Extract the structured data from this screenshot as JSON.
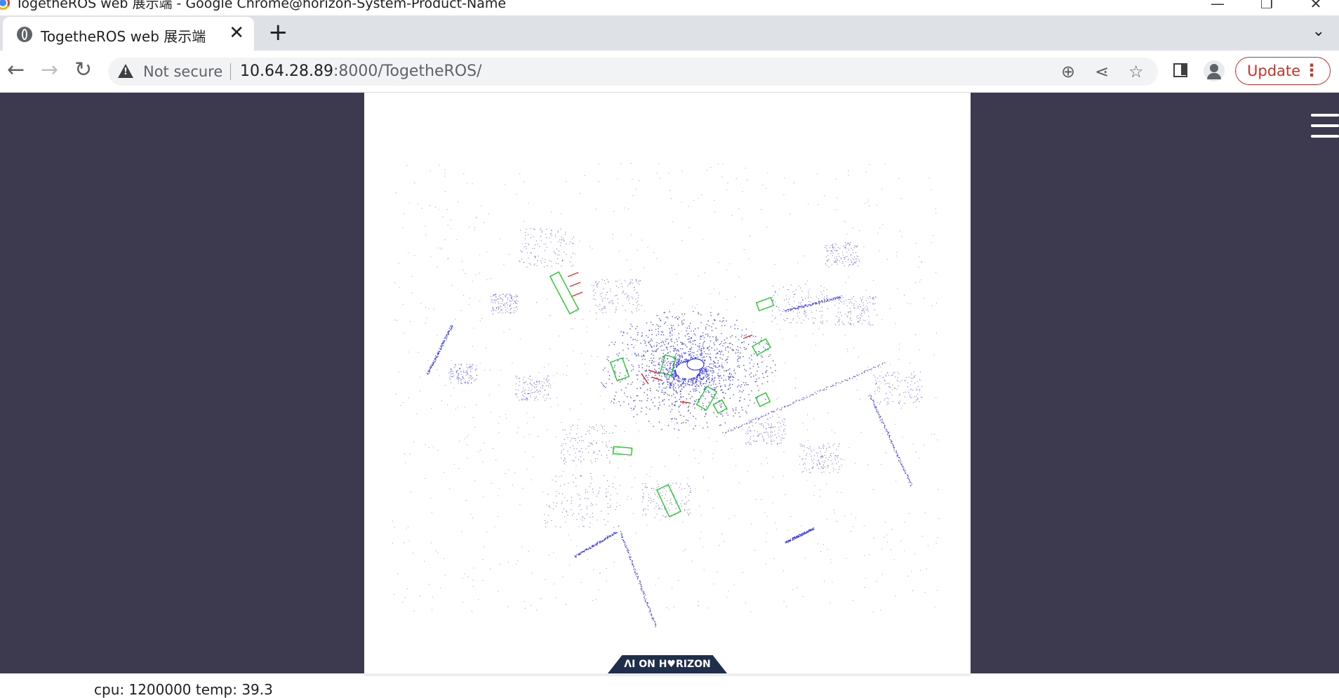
{
  "window": {
    "title": "TogetheROS web 展示端 - Google Chrome@horizon-System-Product-Name",
    "minimize_glyph": "—",
    "restore_glyph": "❐",
    "close_glyph": "✕"
  },
  "tab": {
    "title": "TogetheROS web 展示端",
    "close_glyph": "✕",
    "new_tab_glyph": "+",
    "dropdown_glyph": "⌄"
  },
  "toolbar": {
    "back_glyph": "←",
    "forward_glyph": "→",
    "reload_glyph": "↻",
    "security_label": "Not secure",
    "url_host": "10.64.28.89",
    "url_path": ":8000/TogetheROS/",
    "zoom_glyph": "⊕",
    "share_glyph": "⋖",
    "star_glyph": "☆",
    "update_label": "Update",
    "menu_glyph": "⋮"
  },
  "viewer": {
    "logo_text": "ΛI ON H♥RIZON",
    "point_color": "#1a1aff",
    "box_color_green": "#00cc00",
    "box_color_red": "#ff0000"
  },
  "status": {
    "text": "cpu: 1200000   temp: 39.3"
  },
  "colors": {
    "side_background": "#3d3a4f",
    "update_accent": "#d93025"
  }
}
